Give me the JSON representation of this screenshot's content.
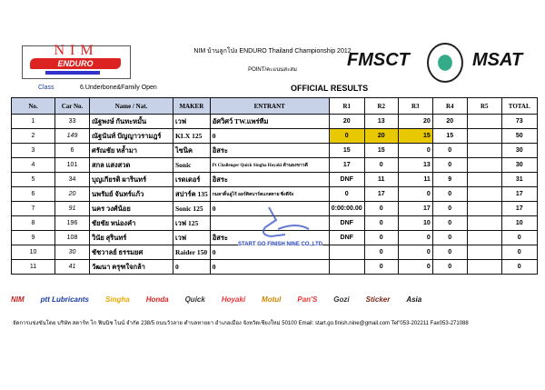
{
  "header": {
    "event_title": "NIM บ้านลูกโป่ง ENDURO Thailand Championship  2012",
    "subtitle": "POINT/คะแนนสะสม",
    "logo_left": "NIM Enduro 2012",
    "logo_fmsct": "FMSCT",
    "logo_msat": "MSAT",
    "class_label": "Class",
    "class_value": "6.Underbone&Family Open",
    "results_title": "OFFICIAL RESULTS"
  },
  "table": {
    "columns": [
      "No.",
      "Car No.",
      "Name / Nat.",
      "MAKER",
      "ENTRANT",
      "R1",
      "R2",
      "R3",
      "R4",
      "R5",
      "TOTAL"
    ],
    "highlight_color": "#e8c800",
    "rows": [
      {
        "no": "1",
        "car": "33",
        "name": "ณัฐพงษ์ กันทะหมั้น",
        "maker": "เวฟ",
        "entrant": "อัศวิศว์ TW.แพร่ทีม",
        "r1": "20",
        "r2": "13",
        "r3": "20",
        "r4": "20",
        "r5": "",
        "total": "73"
      },
      {
        "no": "2",
        "car": "149",
        "name": "ณัฐนันท์ ปัญญาวรามฎร์",
        "maker": "KLX 125",
        "entrant": "0",
        "r1": "0",
        "r2": "20",
        "r3": "15",
        "r4": "15",
        "r5": "",
        "total": "50"
      },
      {
        "no": "3",
        "car": "6",
        "name": "ศรัณชัย หล้ำมา",
        "maker": "ไซนิค",
        "entrant": "อิสระ",
        "r1": "15",
        "r2": "15",
        "r3": "0",
        "r4": "0",
        "r5": "",
        "total": "30"
      },
      {
        "no": "4",
        "car": "101",
        "name": "สกล แสงสวด",
        "maker": "Sonic",
        "entrant": "Pt Challenger Quick Singha Hoyaki ด้านธงขาวดี",
        "r1": "17",
        "r2": "0",
        "r3": "13",
        "r4": "0",
        "r5": "",
        "total": "30"
      },
      {
        "no": "5",
        "car": "34",
        "name": "บุญเกียรติ ผารินทร์",
        "maker": "เรดเดอร์",
        "entrant": "อิสระ",
        "r1": "DNF",
        "r2": "11",
        "r3": "11",
        "r4": "9",
        "r5": "",
        "total": "31"
      },
      {
        "no": "6",
        "car": "20",
        "name": "นพรัมย์ จันทร์แก้ว",
        "maker": "สปาร์ค 135",
        "entrant": "กมลาดิ้นอู่ไร้ ออร์ดิคบาร์ตแกสตาย ซิ่งดีจัง",
        "r1": "0",
        "r2": "17",
        "r3": "0",
        "r4": "0",
        "r5": "",
        "total": "17"
      },
      {
        "no": "7",
        "car": "91",
        "name": "นคร วงศ์น้อย",
        "maker": "Sonic 125",
        "entrant": "0",
        "r1": "0:00:00.00",
        "r2": "0",
        "r3": "17",
        "r4": "0",
        "r5": "",
        "total": "17"
      },
      {
        "no": "8",
        "car": "196",
        "name": "ชัยชัย หน่องคำ",
        "maker": "เวฟ 125",
        "entrant": "",
        "r1": "DNF",
        "r2": "0",
        "r3": "10",
        "r4": "0",
        "r5": "",
        "total": "10"
      },
      {
        "no": "9",
        "car": "108",
        "name": "วินัย สุรินทร์",
        "maker": "เวฟ",
        "entrant": "อิสระ",
        "r1": "DNF",
        "r2": "0",
        "r3": "0",
        "r4": "0",
        "r5": "",
        "total": "0"
      },
      {
        "no": "10",
        "car": "30",
        "name": "ชัชวาลย์ ธรรมยศ",
        "maker": "Raider 150",
        "entrant": "0",
        "r1": "",
        "r2": "0",
        "r3": "0",
        "r4": "0",
        "r5": "",
        "total": "0"
      },
      {
        "no": "11",
        "car": "41",
        "name": "วัฒนา ครุฑใจกล้า",
        "maker": "0",
        "entrant": "0",
        "r1": "",
        "r2": "0",
        "r3": "0",
        "r4": "0",
        "r5": "",
        "total": "0"
      }
    ]
  },
  "sponsors": [
    "NIM",
    "ptt Lubricants",
    "Singha",
    "Honda",
    "Quick",
    "Hoyaki",
    "Motul",
    "Pan'S",
    "Gozi",
    "Sticker",
    "Asia"
  ],
  "stamp_text": "START GO FINISH NINE CO.,LTD",
  "footer": "จัดการแข่งขันโดย บริษัท สตาร์ท โก ฟินนิช ไนน์ จำกัด 238/5 ถนนวัวลาย ตำบลหายยา อำเภอเมือง จังหวัดเชียงใหม่ 50100    Email: start.go.finish.nine@gmail.com Tel\"053-202211 Fax053-271088"
}
